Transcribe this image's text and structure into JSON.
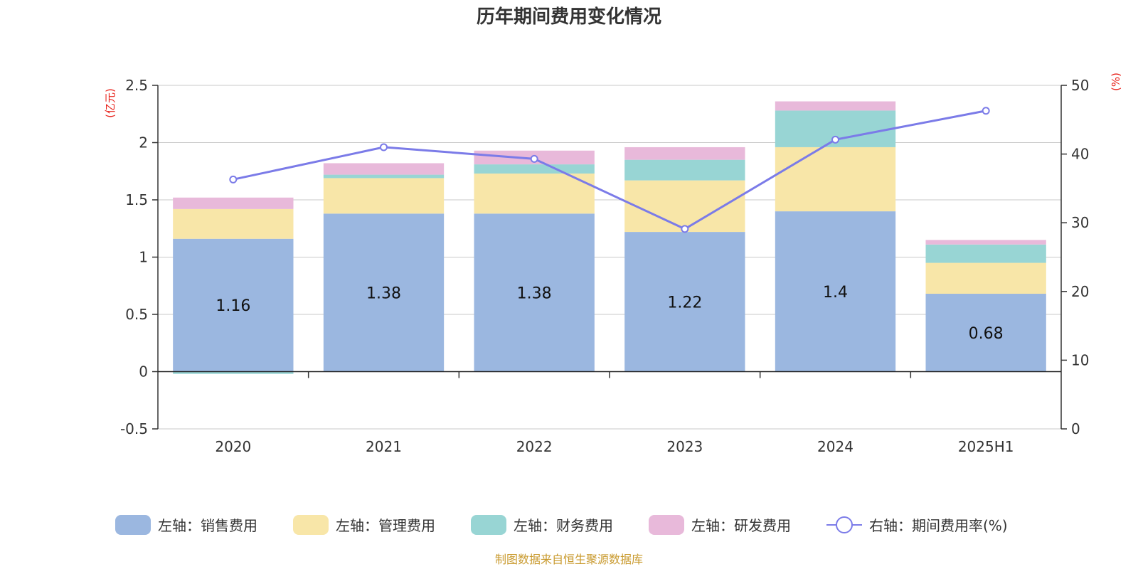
{
  "chart_data": {
    "type": "bar",
    "title": "历年期间费用变化情况",
    "categories": [
      "2020",
      "2021",
      "2022",
      "2023",
      "2024",
      "2025H1"
    ],
    "left_axis": {
      "unit": "(亿元)",
      "ylim": [
        -0.5,
        2.5
      ],
      "ticks": [
        "-0.5",
        "0",
        "0.5",
        "1",
        "1.5",
        "2",
        "2.5"
      ]
    },
    "right_axis": {
      "unit": "(%)",
      "ylim": [
        0,
        50
      ],
      "ticks": [
        "0",
        "10",
        "20",
        "30",
        "40",
        "50"
      ]
    },
    "series": [
      {
        "name": "左轴：销售费用",
        "kind": "bar",
        "color": "#9bb7e0",
        "values": [
          1.16,
          1.38,
          1.38,
          1.22,
          1.4,
          0.68
        ],
        "labels": [
          "1.16",
          "1.38",
          "1.38",
          "1.22",
          "1.4",
          "0.68"
        ]
      },
      {
        "name": "左轴：管理费用",
        "kind": "bar",
        "color": "#f8e6a8",
        "values": [
          0.26,
          0.31,
          0.35,
          0.45,
          0.56,
          0.27
        ]
      },
      {
        "name": "左轴：财务费用",
        "kind": "bar",
        "color": "#98d5d4",
        "values": [
          -0.02,
          0.03,
          0.08,
          0.18,
          0.32,
          0.16
        ]
      },
      {
        "name": "左轴：研发费用",
        "kind": "bar",
        "color": "#e8b9da",
        "values": [
          0.1,
          0.1,
          0.12,
          0.11,
          0.08,
          0.04
        ]
      },
      {
        "name": "右轴：期间费用率(%)",
        "kind": "line",
        "color": "#7b7be8",
        "values": [
          36.3,
          41,
          39.3,
          29.1,
          42.1,
          46.3
        ]
      }
    ],
    "grid": true,
    "legend_position": "bottom"
  },
  "footer": {
    "source": "制图数据来自恒生聚源数据库"
  }
}
